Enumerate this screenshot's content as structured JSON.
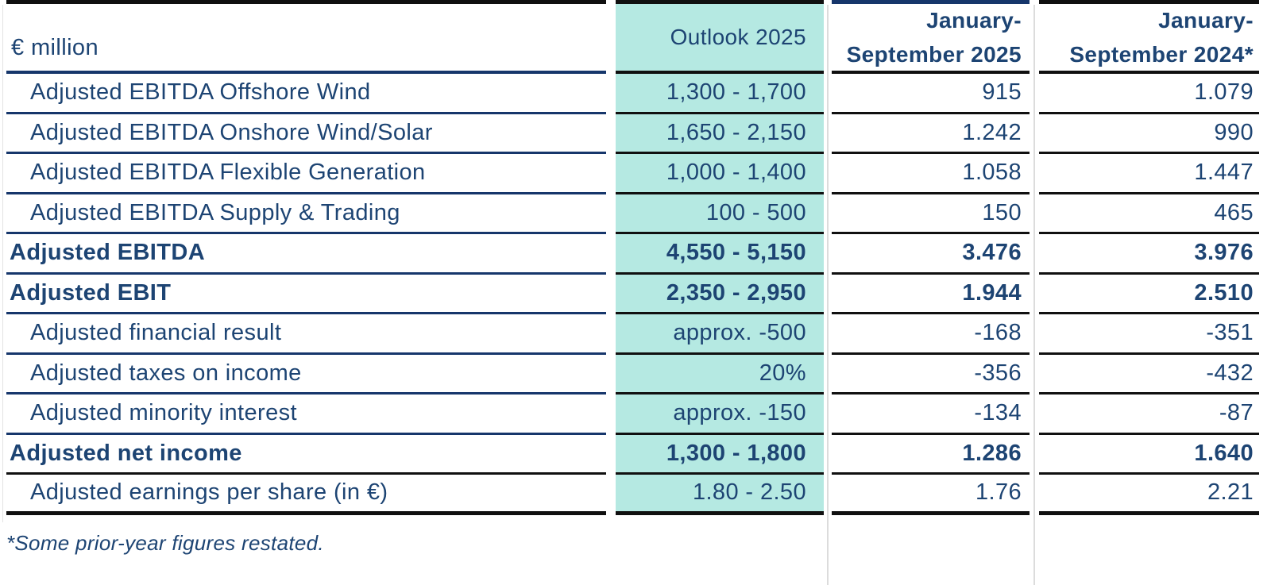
{
  "table": {
    "unit_label": "€ million",
    "columns": [
      {
        "label": "Outlook 2025",
        "highlight": true
      },
      {
        "label_line1": "January-",
        "label_line2": "September 2025"
      },
      {
        "label_line1": "January-",
        "label_line2": "September 2024*"
      }
    ],
    "rows": [
      {
        "label": "Adjusted EBITDA Offshore Wind",
        "indent": true,
        "bold": false,
        "outlook": "1,300 - 1,700",
        "jan_sep_2025": "915",
        "jan_sep_2024": "1.079"
      },
      {
        "label": "Adjusted EBITDA Onshore Wind/Solar",
        "indent": true,
        "bold": false,
        "outlook": "1,650 - 2,150",
        "jan_sep_2025": "1.242",
        "jan_sep_2024": "990"
      },
      {
        "label": "Adjusted EBITDA Flexible Generation",
        "indent": true,
        "bold": false,
        "outlook": "1,000 - 1,400",
        "jan_sep_2025": "1.058",
        "jan_sep_2024": "1.447"
      },
      {
        "label": "Adjusted EBITDA Supply & Trading",
        "indent": true,
        "bold": false,
        "outlook": "100 - 500",
        "jan_sep_2025": "150",
        "jan_sep_2024": "465"
      },
      {
        "label": "Adjusted EBITDA",
        "indent": false,
        "bold": true,
        "outlook": "4,550 - 5,150",
        "jan_sep_2025": "3.476",
        "jan_sep_2024": "3.976"
      },
      {
        "label": "Adjusted EBIT",
        "indent": false,
        "bold": true,
        "outlook": "2,350 - 2,950",
        "jan_sep_2025": "1.944",
        "jan_sep_2024": "2.510"
      },
      {
        "label": "Adjusted financial result",
        "indent": true,
        "bold": false,
        "outlook": "approx. -500",
        "jan_sep_2025": "-168",
        "jan_sep_2024": "-351"
      },
      {
        "label": "Adjusted taxes on income",
        "indent": true,
        "bold": false,
        "outlook": "20%",
        "jan_sep_2025": "-356",
        "jan_sep_2024": "-432"
      },
      {
        "label": "Adjusted minority interest",
        "indent": true,
        "bold": false,
        "outlook": "approx. -150",
        "jan_sep_2025": "-134",
        "jan_sep_2024": "-87"
      },
      {
        "label": "Adjusted net income",
        "indent": false,
        "bold": true,
        "label_sep_black": true,
        "outlook": "1,300 - 1,800",
        "jan_sep_2025": "1.286",
        "jan_sep_2024": "1.640"
      },
      {
        "label": "Adjusted earnings per share (in €)",
        "indent": true,
        "bold": false,
        "outlook": "1.80 - 2.50",
        "jan_sep_2025": "1.76",
        "jan_sep_2024": "2.21"
      }
    ],
    "footnote": "*Some prior-year figures restated."
  },
  "colors": {
    "text_navy": "#1d4473",
    "border_navy": "#16366b",
    "border_black": "#101010",
    "highlight_teal": "#b5e9e2",
    "gridline_gray": "#dcdcdc"
  }
}
